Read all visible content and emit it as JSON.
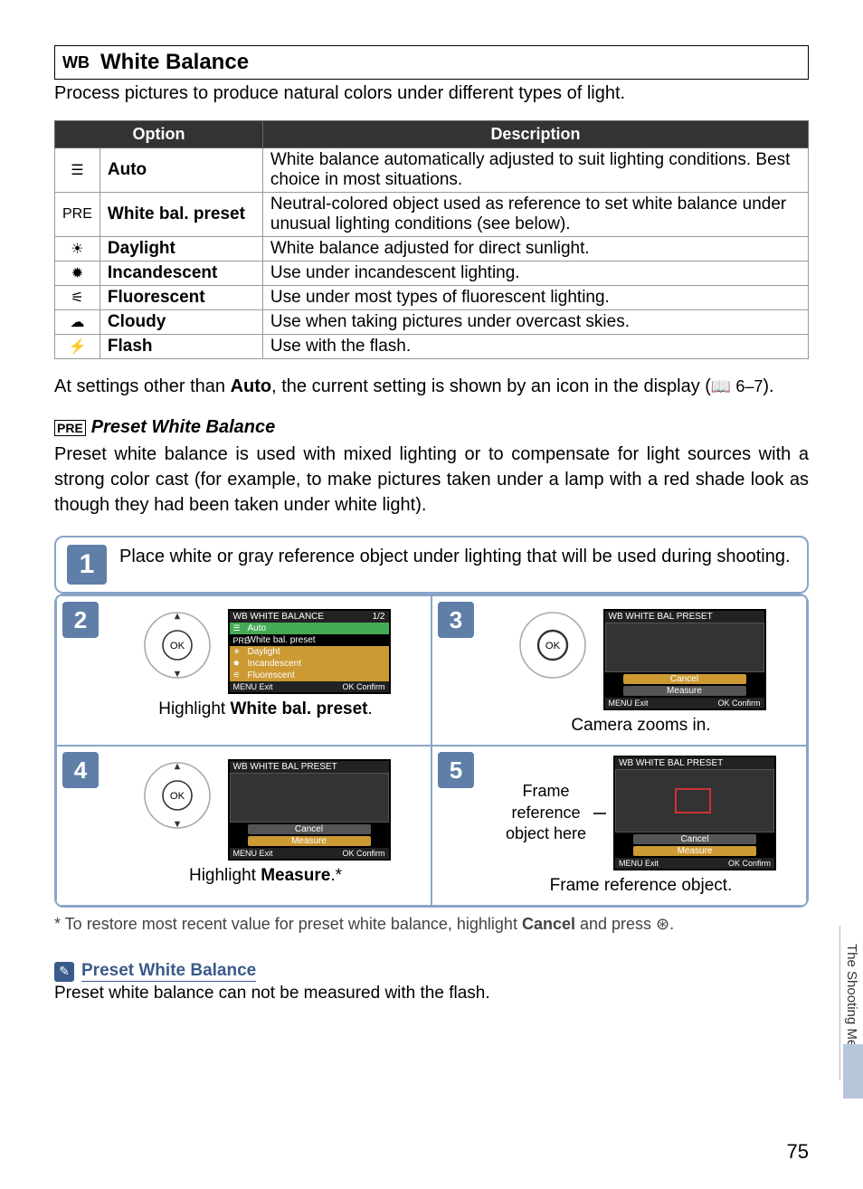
{
  "header": {
    "icon": "WB",
    "title": "White Balance"
  },
  "intro": "Process pictures to produce natural colors under different types of light.",
  "table": {
    "headers": {
      "option": "Option",
      "description": "Description"
    },
    "rows": [
      {
        "icon": "☰",
        "name": "Auto",
        "desc": "White balance automatically adjusted to suit lighting conditions. Best choice in most situations."
      },
      {
        "icon": "PRE",
        "name": "White bal. preset",
        "desc": "Neutral-colored object used as reference to set white balance under unusual lighting conditions (see below)."
      },
      {
        "icon": "☀",
        "name": "Daylight",
        "desc": "White balance adjusted for direct sunlight."
      },
      {
        "icon": "✹",
        "name": "Incandescent",
        "desc": "Use under incandescent lighting."
      },
      {
        "icon": "⚟",
        "name": "Fluorescent",
        "desc": "Use under most types of fluorescent lighting."
      },
      {
        "icon": "☁",
        "name": "Cloudy",
        "desc": "Use when taking pictures under overcast skies."
      },
      {
        "icon": "⚡",
        "name": "Flash",
        "desc": "Use with the flash."
      }
    ]
  },
  "note": {
    "pre": "At settings other than ",
    "bold": "Auto",
    "post": ", the current setting is shown by an icon in the display (",
    "ref": "📖 6–7",
    "post2": ")."
  },
  "preset": {
    "icon": "PRE",
    "heading": "Preset White Balance",
    "body": "Preset white balance is used with mixed lighting or to compensate for light sources with a strong color cast (for example, to make pictures taken under a lamp with a red shade look as though they had been taken under white light)."
  },
  "steps": {
    "s1": {
      "num": "1",
      "text": "Place white or gray reference object under lighting that will be used during shooting."
    },
    "s2": {
      "num": "2",
      "caption_pre": "Highlight ",
      "caption_bold": "White bal. preset",
      "caption_post": ".",
      "lcd": {
        "title": "WHITE BALANCE",
        "page": "1/2",
        "items": [
          "Auto",
          "White bal. preset",
          "Daylight",
          "Incandescent",
          "Fluorescent"
        ],
        "exit": "MENU Exit",
        "confirm": "OK Confirm"
      }
    },
    "s3": {
      "num": "3",
      "caption": "Camera zooms in.",
      "lcd": {
        "title": "WHITE BAL PRESET",
        "btn1": "Cancel",
        "btn2": "Measure",
        "exit": "MENU Exit",
        "confirm": "OK Confirm"
      }
    },
    "s4": {
      "num": "4",
      "caption_pre": "Highlight ",
      "caption_bold": "Measure",
      "caption_post": ".*",
      "lcd": {
        "title": "WHITE BAL PRESET",
        "btn1": "Cancel",
        "btn2": "Measure",
        "exit": "MENU Exit",
        "confirm": "OK Confirm"
      }
    },
    "s5": {
      "num": "5",
      "caption": "Frame reference object.",
      "side_label": "Frame reference object here",
      "lcd": {
        "title": "WHITE BAL PRESET",
        "btn1": "Cancel",
        "btn2": "Measure",
        "exit": "MENU Exit",
        "confirm": "OK Confirm"
      }
    }
  },
  "footnote": {
    "pre": "* To restore most recent value for preset white balance, highlight ",
    "bold": "Cancel",
    "post": " and press ⊛."
  },
  "tip": {
    "title": "Preset White Balance",
    "body": "Preset white balance can not be measured with the flash."
  },
  "sidetab": "The Shooting Menu",
  "page": "75"
}
